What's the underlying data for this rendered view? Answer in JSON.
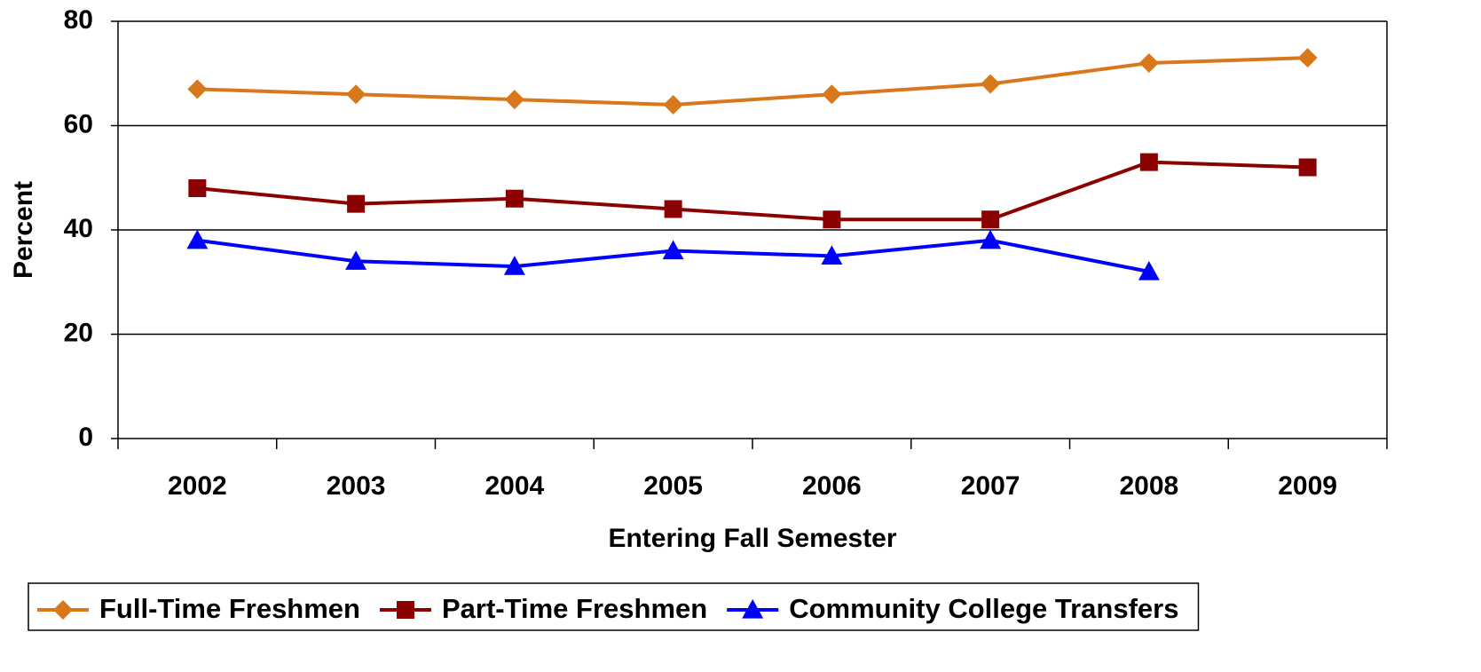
{
  "chart_data": {
    "type": "line",
    "x_label": "Entering Fall Semester",
    "y_label": "Percent",
    "categories": [
      "2002",
      "2003",
      "2004",
      "2005",
      "2006",
      "2007",
      "2008",
      "2009"
    ],
    "series": [
      {
        "name": "Full-Time Freshmen",
        "color": "#d9781a",
        "marker": "diamond",
        "values": [
          67,
          66,
          65,
          64,
          66,
          68,
          72,
          73
        ]
      },
      {
        "name": "Part-Time Freshmen",
        "color": "#8b0000",
        "marker": "square",
        "values": [
          48,
          45,
          46,
          44,
          42,
          42,
          53,
          52
        ]
      },
      {
        "name": "Community College Transfers",
        "color": "#0000ff",
        "marker": "triangle",
        "values": [
          38,
          34,
          33,
          36,
          35,
          38,
          32,
          null
        ]
      }
    ],
    "ylim": [
      0,
      80
    ],
    "yticks": [
      0,
      20,
      40,
      60,
      80
    ],
    "grid": true,
    "legend": "bottom"
  }
}
